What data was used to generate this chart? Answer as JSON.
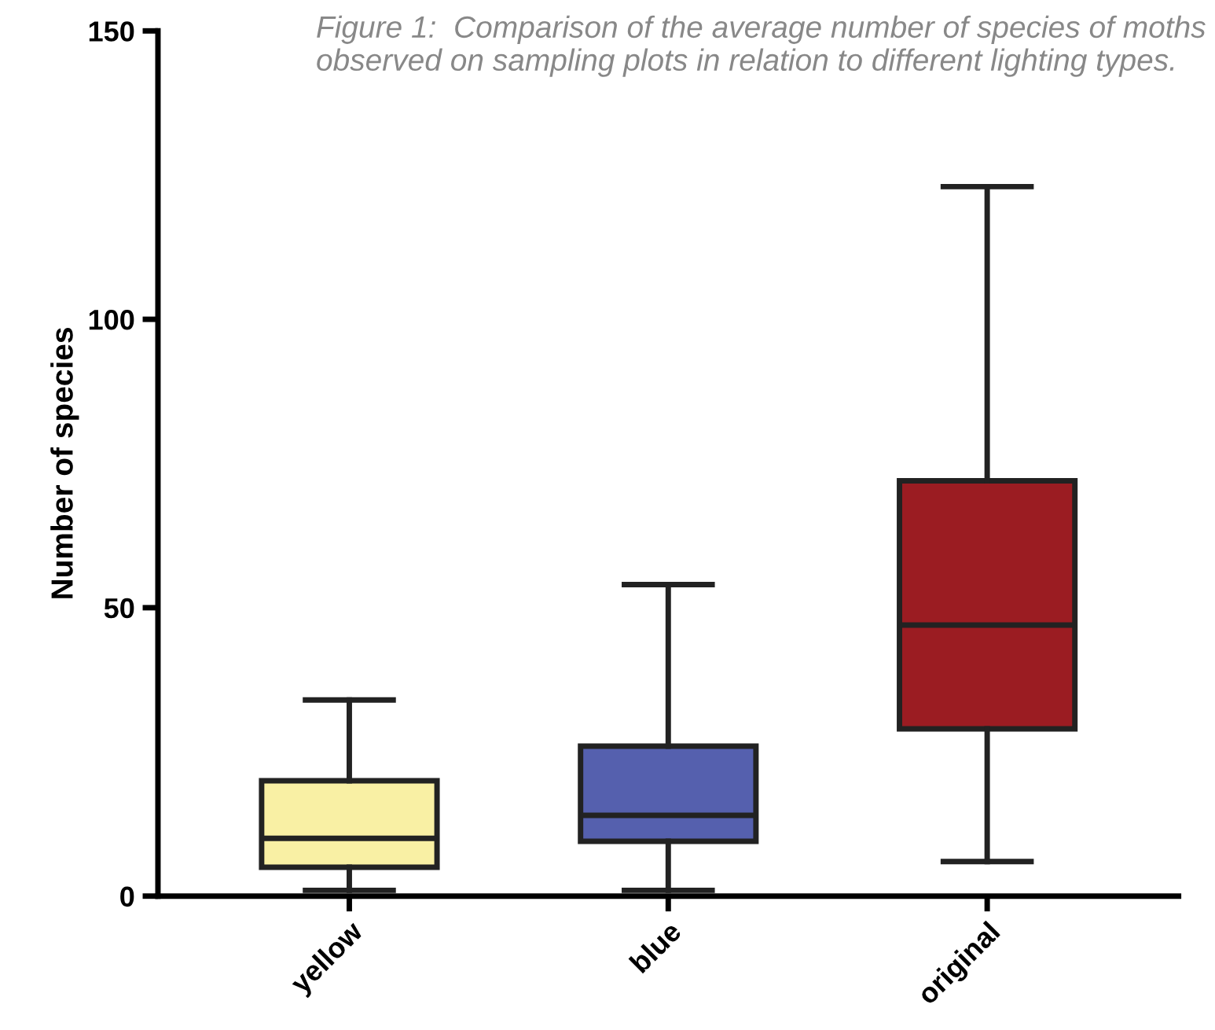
{
  "chart_data": {
    "type": "box",
    "title": "Figure 1:  Comparison of the average number of species of moths observed on sampling plots in relation to different lighting types.",
    "ylabel": "Number of species",
    "categories": [
      "yellow",
      "blue",
      "original"
    ],
    "colors": [
      "#f9f0a4",
      "#5560ae",
      "#9b1c22"
    ],
    "boxes": [
      {
        "low": 1,
        "q1": 5,
        "median": 10,
        "q3": 20,
        "high": 34
      },
      {
        "low": 1,
        "q1": 9.5,
        "median": 14,
        "q3": 26,
        "high": 54
      },
      {
        "low": 6,
        "q1": 29,
        "median": 47,
        "q3": 72,
        "high": 123
      }
    ],
    "ylim": [
      0,
      150
    ],
    "yticks": [
      0,
      50,
      100,
      150
    ],
    "grid": false
  }
}
